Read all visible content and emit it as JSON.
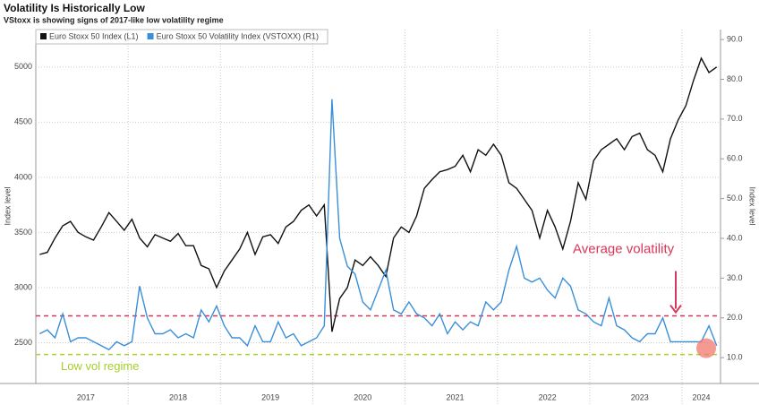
{
  "chart_data": {
    "type": "line",
    "title": "Volatility Is Historically Low",
    "subtitle": "VStoxx is showing signs of 2017-like low volatility regime",
    "y_label": "Index level",
    "y2_label": "Index level",
    "categories": [
      null,
      null,
      null,
      null,
      null,
      null,
      "2017",
      null,
      null,
      null,
      null,
      null,
      null,
      null,
      null,
      null,
      null,
      null,
      "2018",
      null,
      null,
      null,
      null,
      null,
      null,
      null,
      null,
      null,
      null,
      null,
      "2019",
      null,
      null,
      null,
      null,
      null,
      null,
      null,
      null,
      null,
      null,
      null,
      "2020",
      null,
      null,
      null,
      null,
      null,
      null,
      null,
      null,
      null,
      null,
      null,
      "2021",
      null,
      null,
      null,
      null,
      null,
      null,
      null,
      null,
      null,
      null,
      null,
      "2022",
      null,
      null,
      null,
      null,
      null,
      null,
      null,
      null,
      null,
      null,
      null,
      "2023",
      null,
      null,
      null,
      null,
      null,
      null,
      null,
      "2024",
      null,
      null
    ],
    "ylim": [
      2130,
      5340
    ],
    "yticks": [
      2500,
      3000,
      3500,
      4000,
      4500,
      5000
    ],
    "y2lim": [
      3.5,
      92.5
    ],
    "y2ticks": [
      {
        "value": 10,
        "label": "10.0"
      },
      {
        "value": 20,
        "label": "20.0"
      },
      {
        "value": 30,
        "label": "30.0"
      },
      {
        "value": 40,
        "label": "40.0"
      },
      {
        "value": 50,
        "label": "50.0"
      },
      {
        "value": 60,
        "label": "60.0"
      },
      {
        "value": 70,
        "label": "70.0"
      },
      {
        "value": 80,
        "label": "80.0"
      },
      {
        "value": 90,
        "label": "90.0"
      }
    ],
    "grid": true,
    "series": [
      {
        "name": "Euro Stoxx 50 Index (L1)",
        "color": "#111111",
        "values": [
          3300,
          3320,
          3450,
          3560,
          3600,
          3500,
          3460,
          3430,
          3550,
          3680,
          3600,
          3520,
          3620,
          3450,
          3370,
          3480,
          3450,
          3420,
          3490,
          3380,
          3380,
          3200,
          3170,
          3000,
          3150,
          3250,
          3350,
          3500,
          3300,
          3460,
          3480,
          3400,
          3550,
          3600,
          3700,
          3750,
          3650,
          3750,
          2600,
          2900,
          3000,
          3250,
          3200,
          3280,
          3200,
          3100,
          3450,
          3550,
          3500,
          3650,
          3900,
          3980,
          4050,
          4070,
          4100,
          4200,
          4050,
          4250,
          4200,
          4300,
          4200,
          3950,
          3900,
          3800,
          3700,
          3450,
          3700,
          3550,
          3350,
          3600,
          3950,
          3800,
          4150,
          4250,
          4300,
          4350,
          4250,
          4370,
          4400,
          4250,
          4200,
          4050,
          4350,
          4520,
          4650,
          4880,
          5080,
          4950,
          5000
        ]
      },
      {
        "name": "Euro Stoxx 50 Volatility Index (VSTOXX) (R1)",
        "color": "#3a8fd9",
        "axis": "y2",
        "values": [
          16,
          17,
          15,
          21,
          14,
          15,
          15,
          14,
          13,
          12,
          14,
          13,
          14,
          28,
          20,
          16,
          16,
          17,
          15,
          16,
          15,
          22,
          19,
          23,
          18,
          15,
          15,
          13,
          18,
          14,
          14,
          19,
          15,
          16,
          13,
          14,
          15,
          18,
          75,
          40,
          33,
          31,
          24,
          22,
          27,
          32,
          22,
          21,
          24,
          21,
          20,
          18,
          21,
          16,
          19,
          17,
          19,
          18,
          24,
          22,
          24,
          32,
          38,
          30,
          29,
          30,
          27,
          25,
          30,
          28,
          22,
          21,
          19,
          18,
          25,
          18,
          17,
          15,
          14,
          16,
          16,
          20,
          14,
          14,
          14,
          14,
          14,
          18,
          13
        ]
      }
    ],
    "reference_lines": [
      {
        "value": 20.5,
        "axis": "y2",
        "color": "#d6375a",
        "label": "Average volatility"
      },
      {
        "value": 10.8,
        "axis": "y2",
        "color": "#a5cf2a",
        "label": "Low vol regime"
      }
    ]
  }
}
